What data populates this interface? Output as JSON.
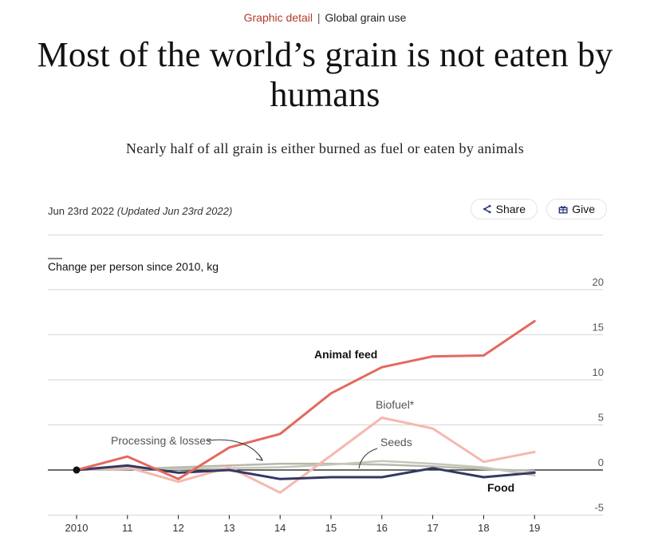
{
  "kicker": {
    "section": "Graphic detail",
    "separator": "|",
    "topic": "Global grain use"
  },
  "headline": "Most of the world’s grain is not eaten by humans",
  "subhead": "Nearly half of all grain is either burned as fuel or eaten by animals",
  "dateline": {
    "date": "Jun 23rd 2022",
    "updated": "(Updated Jun 23rd 2022)"
  },
  "actions": {
    "share_label": "Share",
    "give_label": "Give"
  },
  "chart_data": {
    "type": "line",
    "title": "",
    "ylabel": "Change per person since 2010, kg",
    "xlabel": "",
    "x": [
      2010,
      2011,
      2012,
      2013,
      2014,
      2015,
      2016,
      2017,
      2018,
      2019
    ],
    "x_tick_labels": [
      "2010",
      "11",
      "12",
      "13",
      "14",
      "15",
      "16",
      "17",
      "18",
      "19"
    ],
    "y_ticks": [
      20,
      15,
      10,
      5,
      0,
      -5
    ],
    "ylim": [
      -5,
      20
    ],
    "y_axis_side": "right",
    "grid": true,
    "series": [
      {
        "name": "Animal feed",
        "color": "#e3695e",
        "width": 3,
        "values": [
          0,
          1.5,
          -1.0,
          2.5,
          4.0,
          8.5,
          11.4,
          12.6,
          12.7,
          16.5
        ]
      },
      {
        "name": "Biofuel*",
        "color": "#f4b9ad",
        "width": 3,
        "values": [
          0,
          0.3,
          -1.3,
          0.3,
          -2.5,
          1.6,
          5.8,
          4.6,
          0.9,
          2.0
        ]
      },
      {
        "name": "Processing & losses",
        "color": "#b8b8aa",
        "width": 2.5,
        "values": [
          0,
          0.1,
          0.3,
          0.5,
          0.7,
          0.7,
          0.6,
          0.4,
          0.1,
          -0.1
        ]
      },
      {
        "name": "Seeds",
        "color": "#c6c6ba",
        "width": 2.5,
        "values": [
          0,
          0.1,
          0.1,
          0.2,
          0.3,
          0.6,
          1.0,
          0.7,
          0.3,
          -0.6
        ]
      },
      {
        "name": "Food",
        "color": "#333964",
        "width": 3,
        "values": [
          0,
          0.5,
          -0.3,
          0.0,
          -1.0,
          -0.8,
          -0.8,
          0.2,
          -0.8,
          -0.3
        ]
      }
    ],
    "annotations": {
      "animal_feed": "Animal feed",
      "biofuel": "Biofuel*",
      "processing": "Processing & losses",
      "seeds": "Seeds",
      "food": "Food"
    }
  }
}
